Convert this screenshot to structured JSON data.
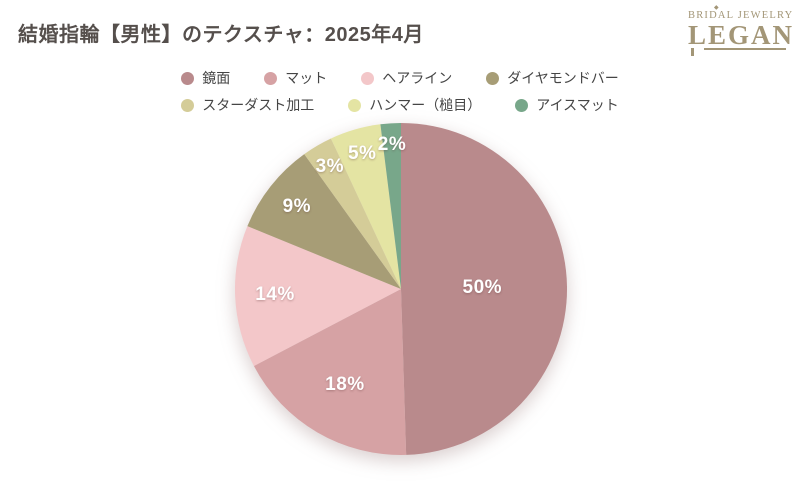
{
  "header": {
    "title": "結婚指輪【男性】のテクスチャ：2025年4月"
  },
  "brand": {
    "line1": "BRIDAL JEWELRY",
    "line2": "LEGAN",
    "diamond": "◆",
    "color": "#a39677"
  },
  "chart_data": {
    "type": "pie",
    "title": "結婚指輪【男性】のテクスチャ：2025年4月",
    "legend_position": "top",
    "start_angle_deg": 0,
    "direction": "clockwise",
    "slices": [
      {
        "label": "鏡面",
        "value": 50,
        "pct_label": "50%",
        "color": "#b98a8c"
      },
      {
        "label": "マット",
        "value": 18,
        "pct_label": "18%",
        "color": "#d6a2a4"
      },
      {
        "label": "ヘアライン",
        "value": 14,
        "pct_label": "14%",
        "color": "#f3c7c9"
      },
      {
        "label": "ダイヤモンドバー",
        "value": 9,
        "pct_label": "9%",
        "color": "#a79d76"
      },
      {
        "label": "スターダスト加工",
        "value": 3,
        "pct_label": "3%",
        "color": "#d4cc98"
      },
      {
        "label": "ハンマー（槌目）",
        "value": 5,
        "pct_label": "5%",
        "color": "#e4e4a3"
      },
      {
        "label": "アイスマット",
        "value": 2,
        "pct_label": "2%",
        "color": "#78a78a"
      }
    ]
  }
}
